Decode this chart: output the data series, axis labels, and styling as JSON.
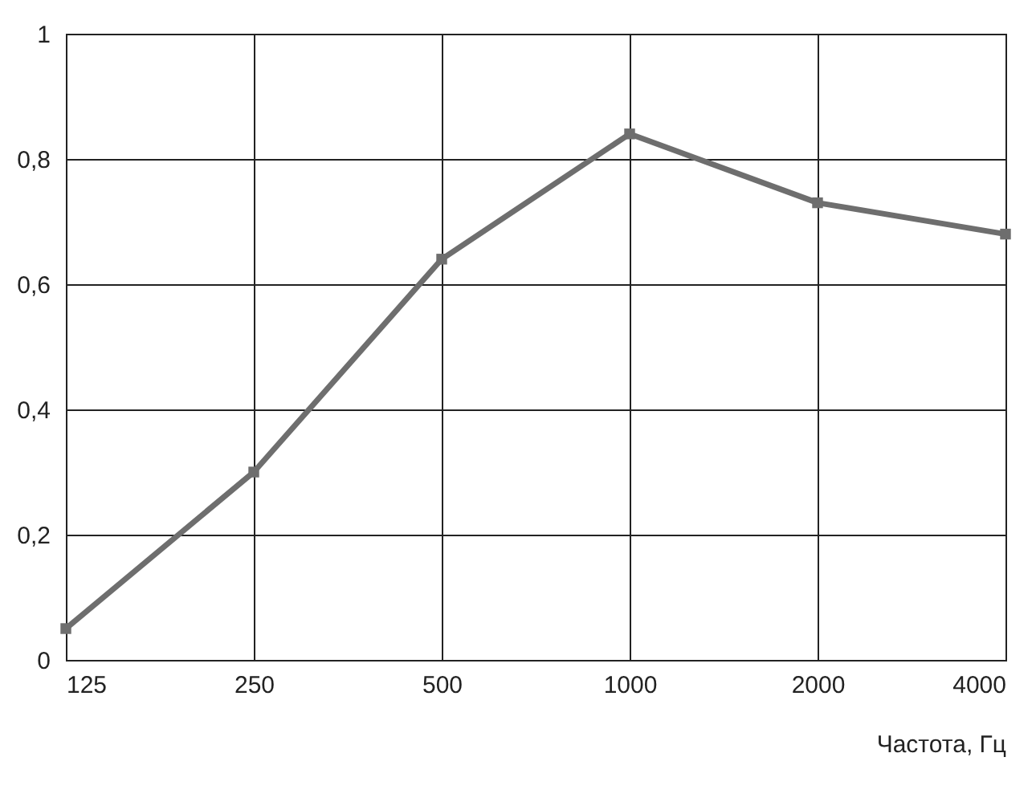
{
  "chart_data": {
    "type": "line",
    "xlabel": "Частота, Гц",
    "categories": [
      "125",
      "250",
      "500",
      "1000",
      "2000",
      "4000"
    ],
    "series": [
      {
        "color": "#6e6e6e",
        "values": [
          0.05,
          0.3,
          0.64,
          0.84,
          0.73,
          0.68
        ]
      }
    ],
    "ylim": [
      0,
      1
    ],
    "yticks": [
      0,
      {
        "value": 0.2,
        "label": "0,2"
      },
      {
        "value": 0.4,
        "label": "0,4"
      },
      {
        "value": 0.6,
        "label": "0,6"
      },
      {
        "value": 0.8,
        "label": "0,8"
      },
      1
    ],
    "grid": true,
    "marker": "square",
    "line_style": "solid",
    "legend": false
  }
}
